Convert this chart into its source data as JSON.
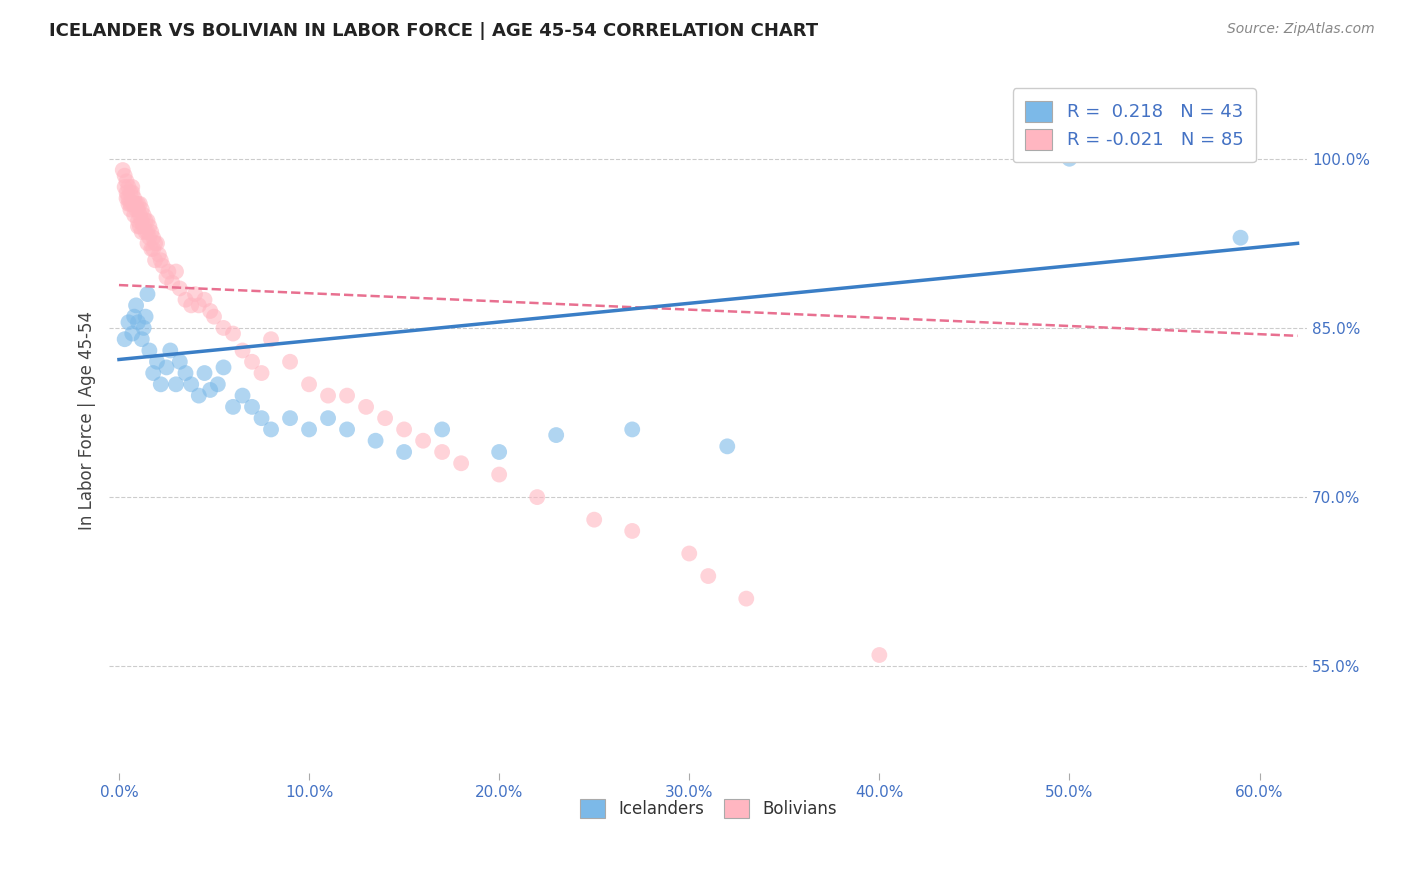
{
  "title": "ICELANDER VS BOLIVIAN IN LABOR FORCE | AGE 45-54 CORRELATION CHART",
  "source": "Source: ZipAtlas.com",
  "xlabel_ticks": [
    "0.0%",
    "10.0%",
    "20.0%",
    "30.0%",
    "40.0%",
    "50.0%",
    "60.0%"
  ],
  "xlabel_vals": [
    0.0,
    0.1,
    0.2,
    0.3,
    0.4,
    0.5,
    0.6
  ],
  "ylabel_ticks": [
    "55.0%",
    "70.0%",
    "85.0%",
    "100.0%"
  ],
  "ylabel_vals": [
    0.55,
    0.7,
    0.85,
    1.0
  ],
  "xlim": [
    -0.005,
    0.625
  ],
  "ylim": [
    0.455,
    1.08
  ],
  "ylabel_label": "In Labor Force | Age 45-54",
  "R_ice": 0.218,
  "N_ice": 43,
  "R_bol": -0.021,
  "N_bol": 85,
  "blue_color": "#7CB9E8",
  "pink_color": "#FFB6C1",
  "blue_line_color": "#3A7EC6",
  "pink_line_color": "#E87090",
  "grid_color": "#CCCCCC",
  "background_color": "#FFFFFF",
  "icelanders_x": [
    0.003,
    0.005,
    0.007,
    0.008,
    0.009,
    0.01,
    0.012,
    0.013,
    0.014,
    0.015,
    0.016,
    0.018,
    0.02,
    0.022,
    0.025,
    0.027,
    0.03,
    0.032,
    0.035,
    0.038,
    0.042,
    0.045,
    0.048,
    0.052,
    0.055,
    0.06,
    0.065,
    0.07,
    0.075,
    0.08,
    0.09,
    0.1,
    0.11,
    0.12,
    0.135,
    0.15,
    0.17,
    0.2,
    0.23,
    0.27,
    0.32,
    0.5,
    0.59
  ],
  "icelanders_y": [
    0.84,
    0.855,
    0.845,
    0.86,
    0.87,
    0.855,
    0.84,
    0.85,
    0.86,
    0.88,
    0.83,
    0.81,
    0.82,
    0.8,
    0.815,
    0.83,
    0.8,
    0.82,
    0.81,
    0.8,
    0.79,
    0.81,
    0.795,
    0.8,
    0.815,
    0.78,
    0.79,
    0.78,
    0.77,
    0.76,
    0.77,
    0.76,
    0.77,
    0.76,
    0.75,
    0.74,
    0.76,
    0.74,
    0.755,
    0.76,
    0.745,
    1.0,
    0.93
  ],
  "bolivians_x": [
    0.002,
    0.003,
    0.003,
    0.004,
    0.004,
    0.004,
    0.005,
    0.005,
    0.005,
    0.006,
    0.006,
    0.006,
    0.007,
    0.007,
    0.007,
    0.008,
    0.008,
    0.008,
    0.009,
    0.009,
    0.01,
    0.01,
    0.01,
    0.01,
    0.011,
    0.011,
    0.011,
    0.012,
    0.012,
    0.012,
    0.013,
    0.013,
    0.014,
    0.014,
    0.015,
    0.015,
    0.015,
    0.016,
    0.016,
    0.017,
    0.017,
    0.018,
    0.018,
    0.019,
    0.019,
    0.02,
    0.021,
    0.022,
    0.023,
    0.025,
    0.026,
    0.028,
    0.03,
    0.032,
    0.035,
    0.038,
    0.04,
    0.042,
    0.045,
    0.048,
    0.05,
    0.055,
    0.06,
    0.065,
    0.07,
    0.075,
    0.08,
    0.09,
    0.1,
    0.11,
    0.12,
    0.13,
    0.14,
    0.15,
    0.16,
    0.17,
    0.18,
    0.2,
    0.22,
    0.25,
    0.27,
    0.3,
    0.31,
    0.33,
    0.4
  ],
  "bolivians_y": [
    0.99,
    0.985,
    0.975,
    0.98,
    0.97,
    0.965,
    0.975,
    0.965,
    0.96,
    0.97,
    0.96,
    0.955,
    0.975,
    0.97,
    0.96,
    0.965,
    0.96,
    0.95,
    0.96,
    0.955,
    0.96,
    0.955,
    0.945,
    0.94,
    0.96,
    0.95,
    0.94,
    0.955,
    0.945,
    0.935,
    0.95,
    0.94,
    0.945,
    0.935,
    0.945,
    0.935,
    0.925,
    0.94,
    0.93,
    0.935,
    0.92,
    0.93,
    0.92,
    0.925,
    0.91,
    0.925,
    0.915,
    0.91,
    0.905,
    0.895,
    0.9,
    0.89,
    0.9,
    0.885,
    0.875,
    0.87,
    0.88,
    0.87,
    0.875,
    0.865,
    0.86,
    0.85,
    0.845,
    0.83,
    0.82,
    0.81,
    0.84,
    0.82,
    0.8,
    0.79,
    0.79,
    0.78,
    0.77,
    0.76,
    0.75,
    0.74,
    0.73,
    0.72,
    0.7,
    0.68,
    0.67,
    0.65,
    0.63,
    0.61,
    0.56
  ],
  "blue_trend_x": [
    0.0,
    0.62
  ],
  "blue_trend_y": [
    0.822,
    0.925
  ],
  "pink_trend_x": [
    0.0,
    0.62
  ],
  "pink_trend_y": [
    0.888,
    0.843
  ]
}
